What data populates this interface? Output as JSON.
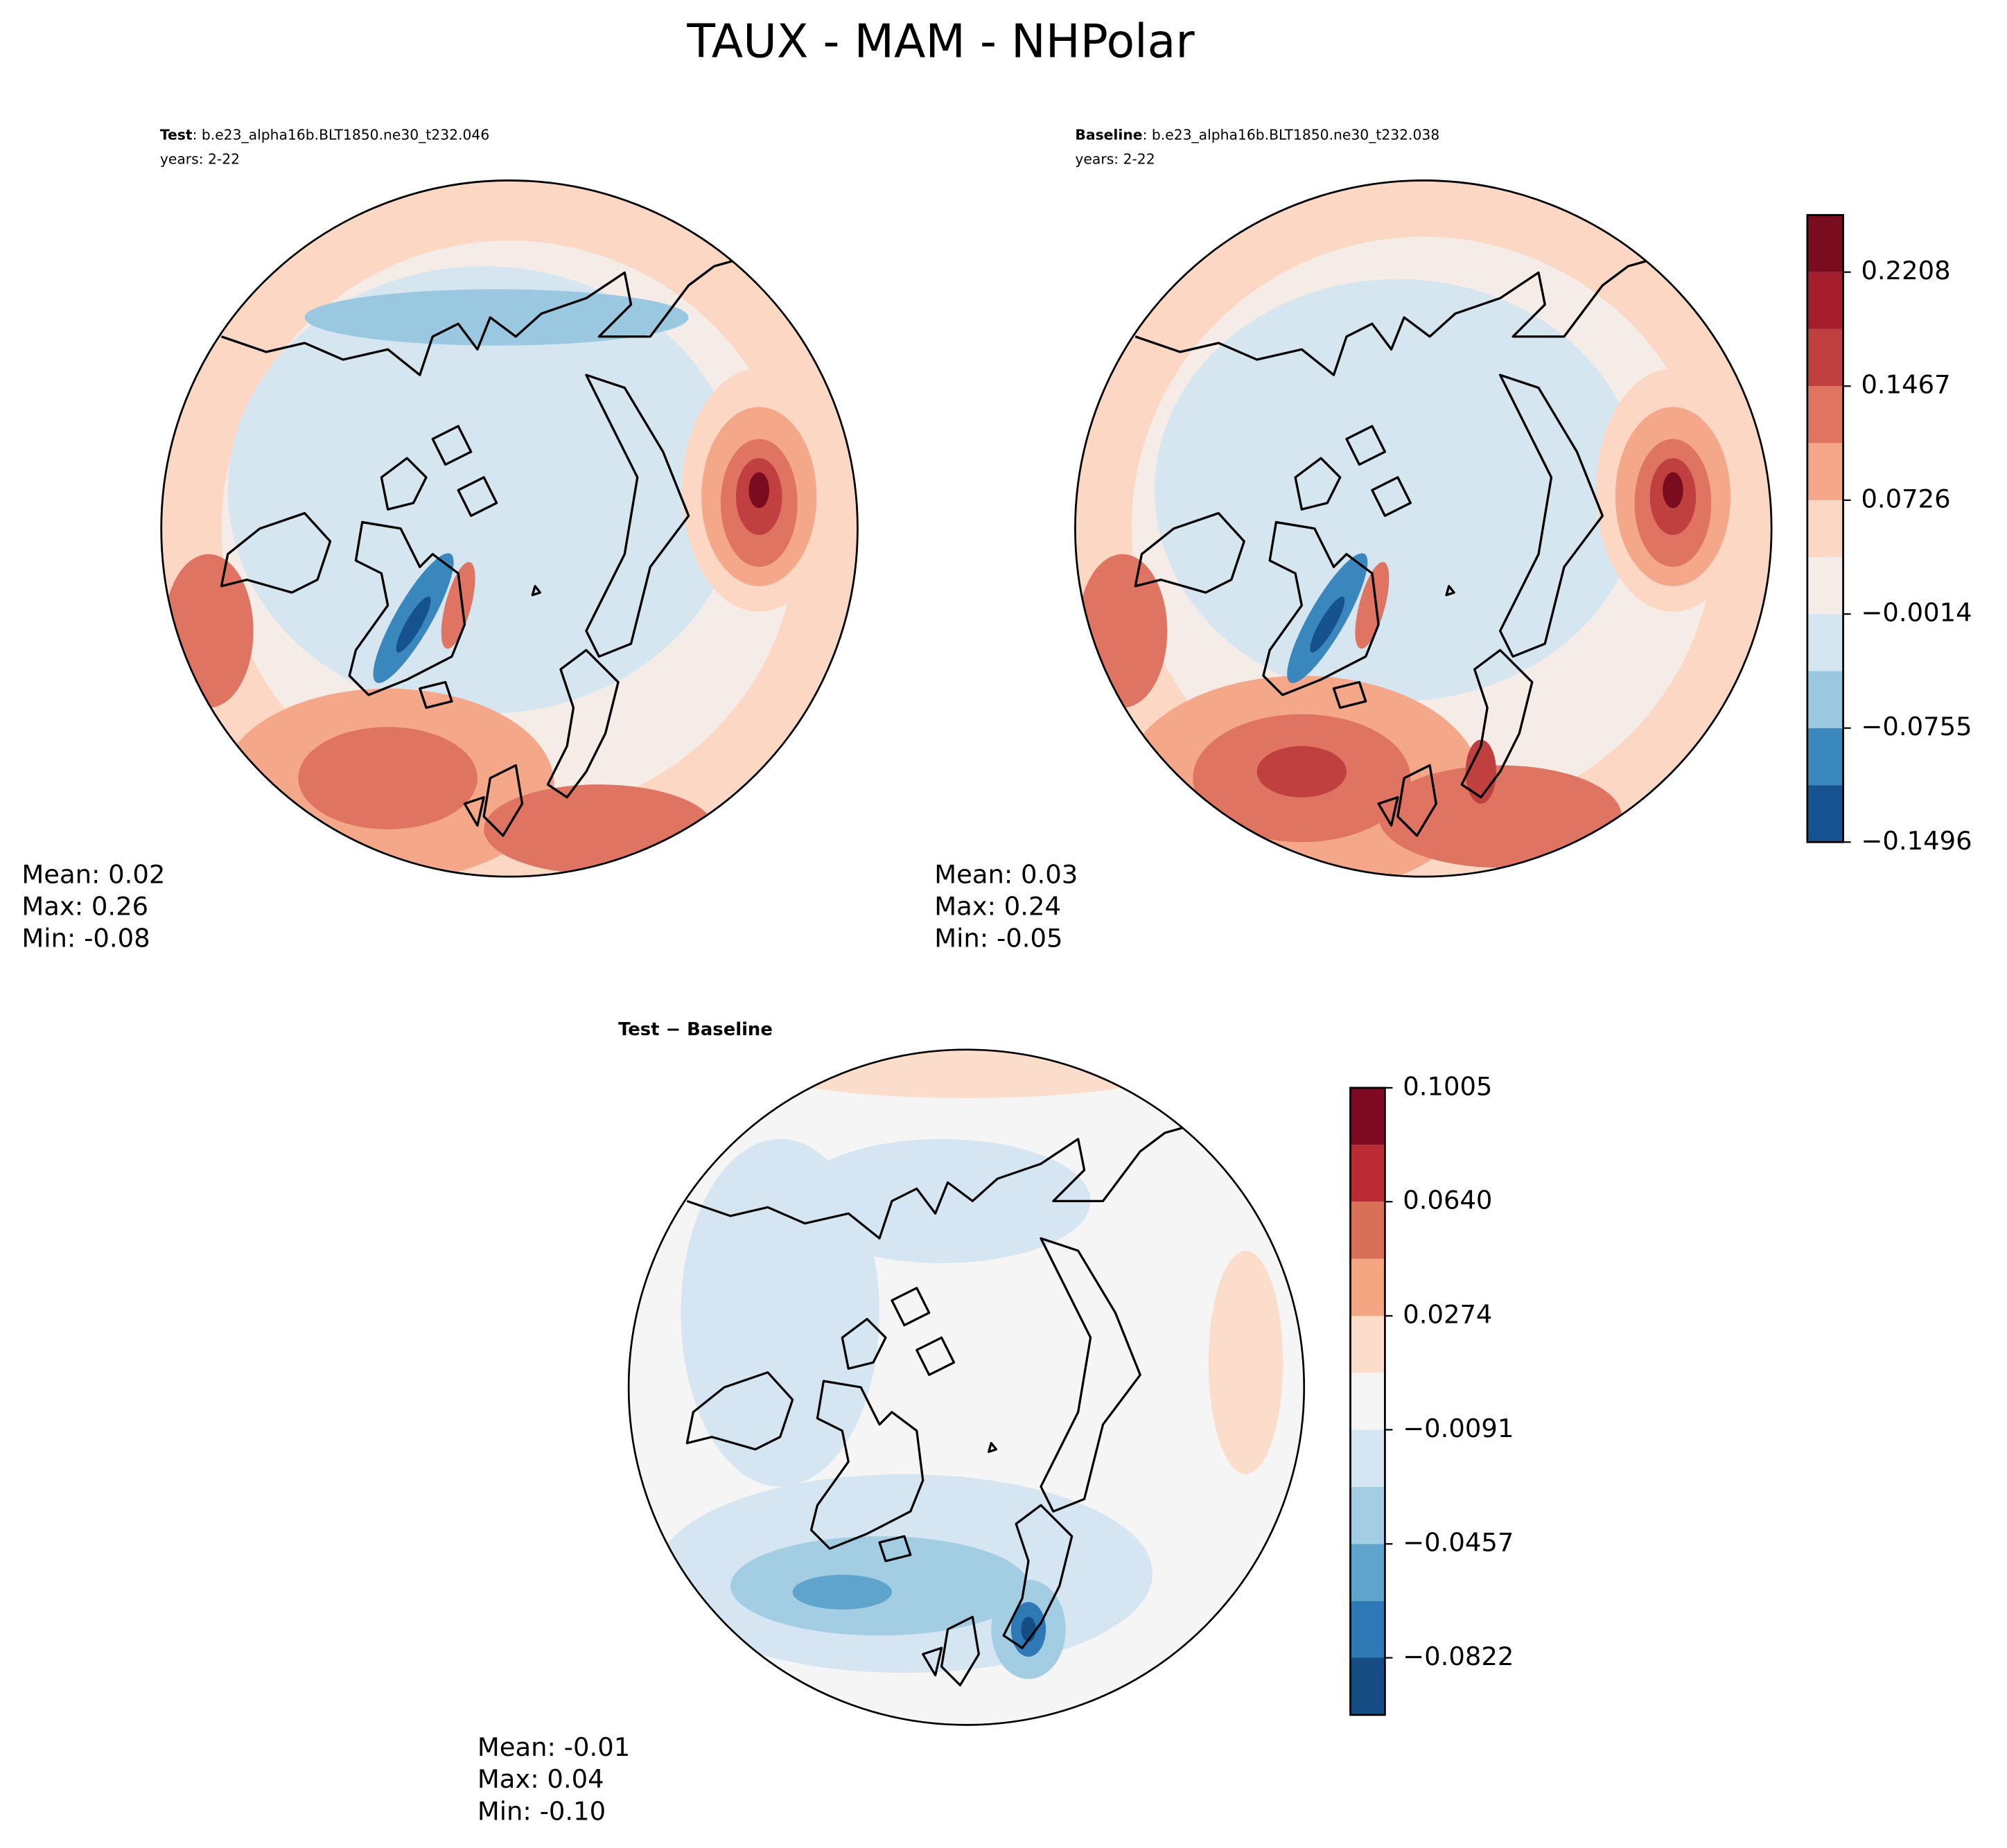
{
  "title": "TAUX - MAM - NHPolar",
  "panels": [
    {
      "label": "Test",
      "case": ": b.e23_alpha16b.BLT1850.ne30_t232.046",
      "years": "years: 2-22",
      "stats": [
        "Mean:  0.02",
        "Max:  0.26",
        "Min: -0.08"
      ]
    },
    {
      "label": "Baseline",
      "case": ": b.e23_alpha16b.BLT1850.ne30_t232.038",
      "years": "years: 2-22",
      "stats": [
        "Mean:  0.03",
        "Max:  0.24",
        "Min: -0.05"
      ]
    },
    {
      "label": "Test − Baseline",
      "stats": [
        "Mean: -0.01",
        "Max:  0.04",
        "Min: -0.10"
      ]
    }
  ],
  "colorbars": [
    {
      "ylim": [
        -0.1496,
        0.2579
      ],
      "levels": [
        -0.1496,
        -0.1126,
        -0.0755,
        -0.0385,
        -0.0014,
        0.0356,
        0.0726,
        0.1097,
        0.1467,
        0.1838,
        0.2208,
        0.2579
      ],
      "colors": [
        "#175290",
        "#3a87bd",
        "#9ac8e0",
        "#d6e6f1",
        "#f6ece7",
        "#fbd7c4",
        "#f4a889",
        "#de7461",
        "#c03f3f",
        "#a51d2d",
        "#7a0c20"
      ],
      "yticks": [
        {
          "value": -0.1496,
          "label": "−0.1496"
        },
        {
          "value": -0.0755,
          "label": "−0.0755"
        },
        {
          "value": -0.0014,
          "label": "−0.0014"
        },
        0.0726,
        0.1467,
        0.2208
      ]
    },
    {
      "ylim": [
        -0.1005,
        0.1005
      ],
      "levels": [
        -0.1005,
        -0.0822,
        -0.064,
        -0.0457,
        -0.0274,
        -0.0091,
        0.0091,
        0.0274,
        0.0457,
        0.064,
        0.0822,
        0.1005
      ],
      "colors": [
        "#154c84",
        "#2e78b5",
        "#5fa4cd",
        "#a3cde3",
        "#d5e5f1",
        "#f5f5f5",
        "#fcdccb",
        "#f4a582",
        "#d86f57",
        "#bb2b33",
        "#7d0a22"
      ],
      "yticks": [
        {
          "value": -0.0822,
          "label": "−0.0822"
        },
        {
          "value": -0.0457,
          "label": "−0.0457"
        },
        {
          "value": -0.0091,
          "label": "−0.0091"
        },
        0.0274,
        {
          "value": 0.064,
          "label": "0.0640"
        },
        0.1005
      ]
    }
  ]
}
